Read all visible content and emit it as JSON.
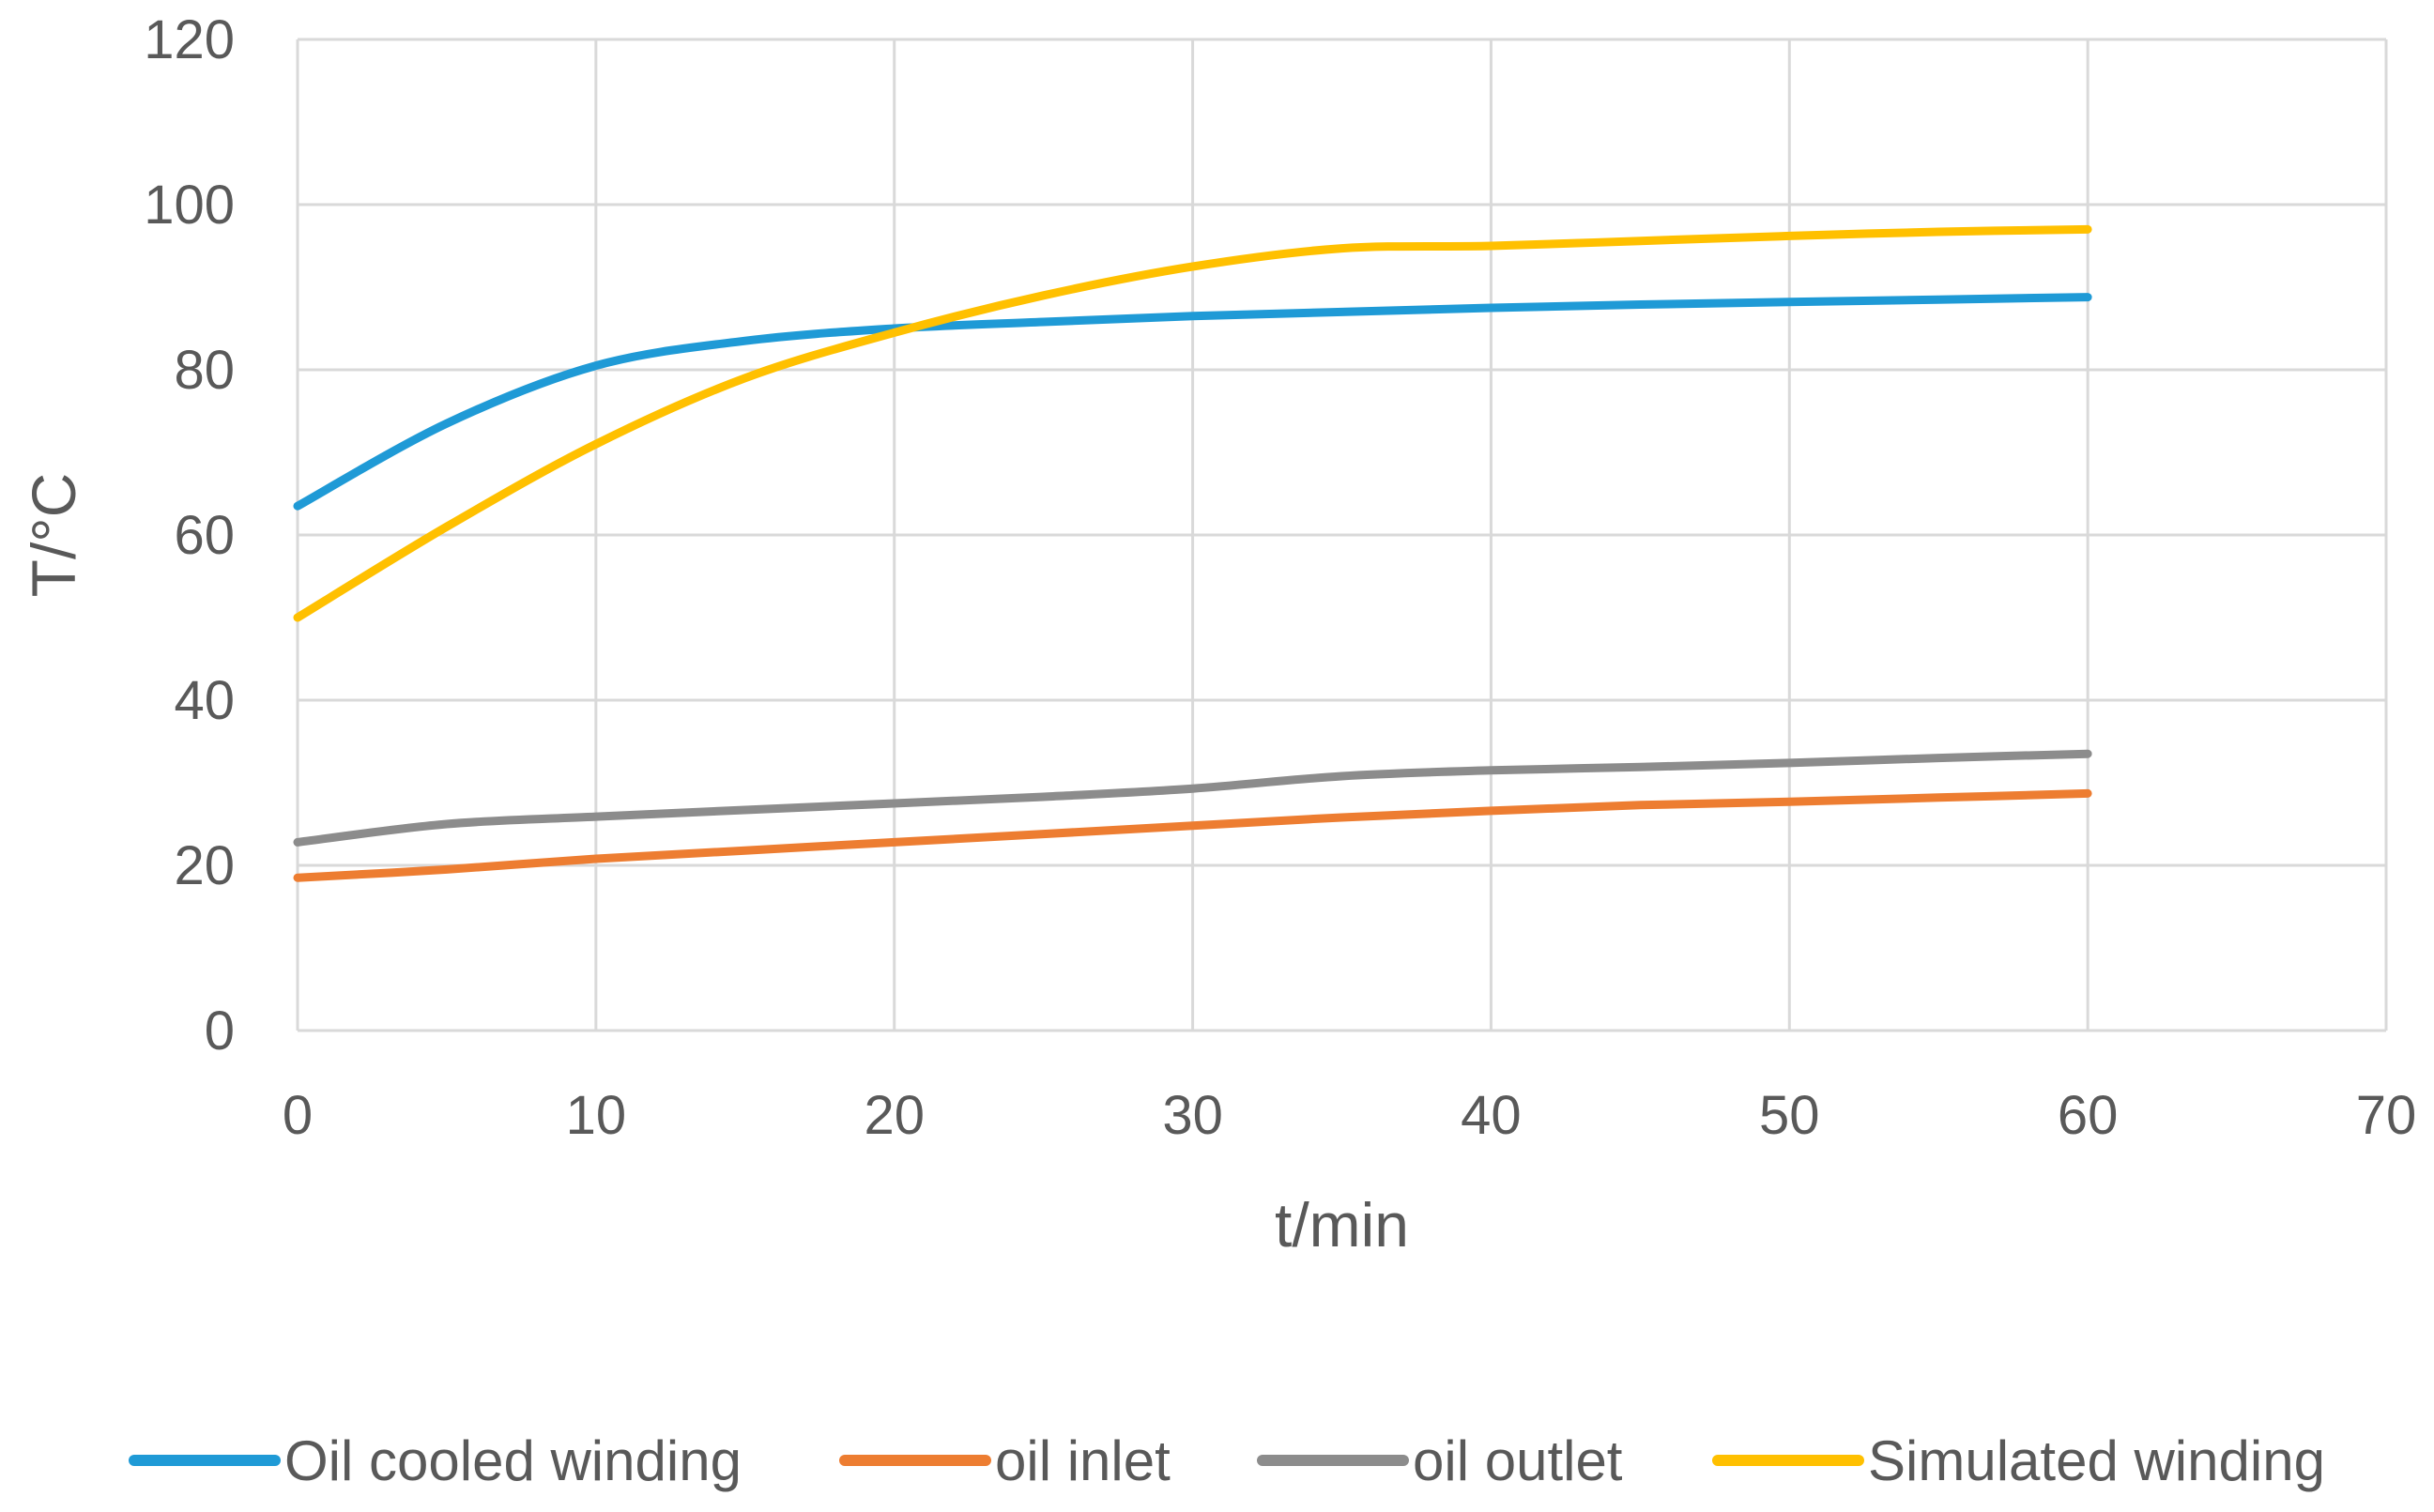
{
  "chart_data": {
    "type": "line",
    "title": "",
    "xlabel": "t/min",
    "ylabel": "T/°C",
    "xlim": [
      0,
      70
    ],
    "ylim": [
      0,
      120
    ],
    "x_ticks": [
      0,
      10,
      20,
      30,
      40,
      50,
      60,
      70
    ],
    "y_ticks": [
      0,
      20,
      40,
      60,
      80,
      100,
      120
    ],
    "grid": true,
    "legend_position": "bottom",
    "series": [
      {
        "name": "Oil cooled winding",
        "color": "#1f9ad6",
        "x": [
          0,
          5,
          10,
          15,
          20,
          25,
          30,
          35,
          40,
          45,
          50,
          55,
          60
        ],
        "y": [
          63.5,
          73.5,
          80.5,
          83.5,
          85.0,
          85.8,
          86.5,
          87.0,
          87.5,
          87.9,
          88.2,
          88.5,
          88.8
        ]
      },
      {
        "name": "oil inlet",
        "color": "#ed7d31",
        "x": [
          0,
          5,
          10,
          15,
          20,
          25,
          30,
          35,
          40,
          45,
          50,
          55,
          60
        ],
        "y": [
          18.5,
          19.5,
          20.8,
          21.8,
          22.8,
          23.8,
          24.8,
          25.8,
          26.6,
          27.3,
          27.7,
          28.2,
          28.7
        ]
      },
      {
        "name": "oil outlet",
        "color": "#8c8c8c",
        "x": [
          0,
          5,
          10,
          15,
          20,
          25,
          30,
          35,
          40,
          45,
          50,
          55,
          60
        ],
        "y": [
          22.8,
          25.0,
          25.9,
          26.7,
          27.5,
          28.3,
          29.3,
          30.8,
          31.5,
          31.9,
          32.4,
          33.0,
          33.5
        ]
      },
      {
        "name": "Simulated winding",
        "color": "#ffc000",
        "x": [
          0,
          5,
          10,
          15,
          20,
          25,
          30,
          35,
          40,
          45,
          50,
          55,
          60
        ],
        "y": [
          50.0,
          61.0,
          71.0,
          79.0,
          84.5,
          89.0,
          92.5,
          94.7,
          95.0,
          95.6,
          96.2,
          96.7,
          97.0
        ]
      }
    ]
  }
}
